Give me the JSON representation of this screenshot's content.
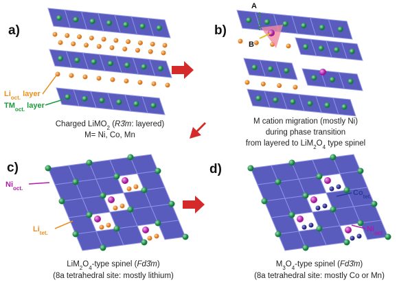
{
  "panels": [
    {
      "label": "a)",
      "annotations": [
        [
          {
            "text": "Li"
          },
          {
            "sub": "oct."
          },
          {
            "text": " layer"
          }
        ],
        [
          {
            "text": "TM"
          },
          {
            "sub": "oct."
          },
          {
            "text": " layer"
          }
        ]
      ],
      "caption": [
        [
          {
            "text": "Charged LiMO"
          },
          {
            "sub": "2"
          },
          {
            "text": " ("
          },
          {
            "italic": "R3̄m"
          },
          {
            "text": ": layered)"
          }
        ],
        [
          {
            "text": "M= Ni, Co, Mn"
          }
        ]
      ]
    },
    {
      "label": "b)",
      "annotations": [
        [
          {
            "text": "A"
          }
        ],
        [
          {
            "text": "B"
          }
        ]
      ],
      "caption": [
        [
          {
            "text": "M cation migration (mostly Ni)"
          }
        ],
        [
          {
            "text": "during phase transition"
          }
        ],
        [
          {
            "text": "from layered to LiM"
          },
          {
            "sub": "2"
          },
          {
            "text": "O"
          },
          {
            "sub": "4"
          },
          {
            "text": " type spinel"
          }
        ]
      ]
    },
    {
      "label": "c)",
      "annotations": [
        [
          {
            "text": "Ni"
          },
          {
            "sub": "oct."
          }
        ],
        [
          {
            "text": "Li"
          },
          {
            "sub": "tet."
          }
        ]
      ],
      "caption": [
        [
          {
            "text": "LiM"
          },
          {
            "sub": "2"
          },
          {
            "text": "O"
          },
          {
            "sub": "4"
          },
          {
            "text": "-type spinel ("
          },
          {
            "italic": "Fd3̄m"
          },
          {
            "text": ")"
          }
        ],
        [
          {
            "text": "(8a  tetrahedral site: mostly lithium)"
          }
        ]
      ]
    },
    {
      "label": "d)",
      "annotations": [
        [
          {
            "text": "Co"
          },
          {
            "sub": "tet."
          }
        ],
        [
          {
            "text": "Ni"
          },
          {
            "sub": "oct"
          }
        ]
      ],
      "caption": [
        [
          {
            "text": "M"
          },
          {
            "sub": "3"
          },
          {
            "text": "O"
          },
          {
            "sub": "4"
          },
          {
            "text": "-type spinel ("
          },
          {
            "italic": "Fd3̄m"
          },
          {
            "text": ")"
          }
        ],
        [
          {
            "text": "(8a  tetrahedral site: mostly Co or Mn)"
          }
        ]
      ]
    }
  ]
}
